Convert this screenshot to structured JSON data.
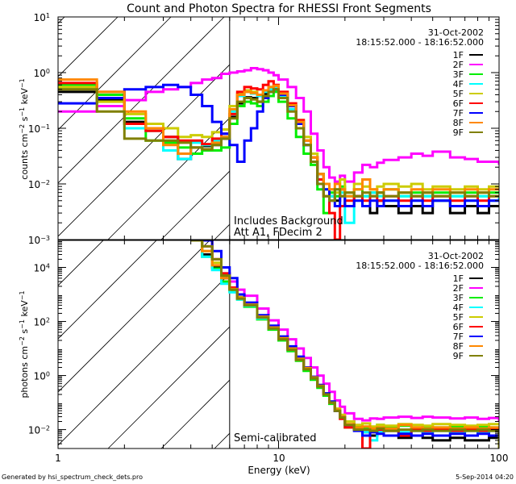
{
  "chart_data": [
    {
      "type": "line",
      "title": "Count and Photon Spectra for RHESSI Front Segments",
      "xlabel": "Energy (keV)",
      "ylabel": "counts cm^-2 s^-1 keV^-1",
      "xscale": "log",
      "yscale": "log",
      "xlim": [
        1,
        100
      ],
      "ylim": [
        0.001,
        10
      ],
      "x_tick_labels": [
        "1",
        "10",
        "100"
      ],
      "y_tick_labels": [
        {
          "base": "10",
          "exp": "1",
          "value": 10
        },
        {
          "base": "10",
          "exp": "0",
          "value": 1
        },
        {
          "base": "10",
          "exp": "-1",
          "value": 0.1
        },
        {
          "base": "10",
          "exp": "-2",
          "value": 0.01
        },
        {
          "base": "10",
          "exp": "-3",
          "value": 0.001
        }
      ],
      "threshold_energy_keV": 6,
      "date": "31-Oct-2002",
      "time_range": "18:15:52.000 - 18:16:52.000",
      "annotations": [
        "Includes Background",
        "Att A1, FDecim 2"
      ],
      "legend_position": "top-right",
      "energy": [
        1.0,
        1.5,
        2.0,
        2.5,
        3.0,
        3.5,
        4.0,
        4.5,
        5.0,
        5.5,
        6.0,
        6.5,
        7.0,
        7.5,
        8.0,
        8.5,
        9.0,
        9.5,
        10,
        11,
        12,
        13,
        14,
        15,
        16,
        17,
        18,
        19,
        20,
        22,
        24,
        26,
        28,
        30,
        35,
        40,
        45,
        50,
        60,
        70,
        80,
        90,
        100
      ],
      "series": [
        {
          "name": "1F",
          "color": "#000000",
          "values": [
            0.45,
            0.33,
            0.13,
            0.1,
            0.07,
            0.028,
            0.045,
            0.048,
            0.05,
            0.065,
            0.16,
            0.28,
            0.36,
            0.35,
            0.3,
            0.42,
            0.45,
            0.55,
            0.4,
            0.25,
            0.13,
            0.05,
            0.03,
            0.015,
            0.01,
            0.006,
            0.005,
            0.008,
            0.004,
            0.006,
            0.004,
            0.003,
            0.005,
            0.004,
            0.003,
            0.004,
            0.003,
            0.005,
            0.003,
            0.004,
            0.003,
            0.004,
            0.004
          ]
        },
        {
          "name": "2F",
          "color": "#ff00ff",
          "values": [
            0.2,
            0.25,
            0.32,
            0.45,
            0.5,
            0.55,
            0.65,
            0.75,
            0.8,
            0.95,
            1.0,
            1.05,
            1.1,
            1.2,
            1.15,
            1.1,
            1.0,
            0.9,
            0.75,
            0.55,
            0.35,
            0.2,
            0.08,
            0.04,
            0.02,
            0.013,
            0.011,
            0.014,
            0.011,
            0.016,
            0.022,
            0.02,
            0.024,
            0.027,
            0.03,
            0.035,
            0.032,
            0.038,
            0.03,
            0.028,
            0.025,
            0.025,
            0.022
          ]
        },
        {
          "name": "3F",
          "color": "#00ee00",
          "values": [
            0.6,
            0.4,
            0.15,
            0.06,
            0.055,
            0.045,
            0.035,
            0.04,
            0.04,
            0.045,
            0.12,
            0.25,
            0.3,
            0.28,
            0.25,
            0.3,
            0.38,
            0.45,
            0.3,
            0.15,
            0.07,
            0.035,
            0.022,
            0.008,
            0.003,
            0.007,
            0.006,
            0.009,
            0.006,
            0.008,
            0.006,
            0.007,
            0.007,
            0.008,
            0.006,
            0.007,
            0.006,
            0.007,
            0.006,
            0.007,
            0.006,
            0.007,
            0.007
          ]
        },
        {
          "name": "4F",
          "color": "#00ffff",
          "values": [
            0.55,
            0.35,
            0.1,
            0.09,
            0.04,
            0.028,
            0.055,
            0.05,
            0.06,
            0.07,
            0.2,
            0.38,
            0.45,
            0.42,
            0.38,
            0.45,
            0.5,
            0.55,
            0.38,
            0.22,
            0.12,
            0.05,
            0.025,
            0.012,
            0.008,
            0.006,
            0.008,
            0.007,
            0.002,
            0.005,
            0.006,
            0.007,
            0.006,
            0.005,
            0.006,
            0.005,
            0.006,
            0.005,
            0.006,
            0.005,
            0.006,
            0.005,
            0.006
          ]
        },
        {
          "name": "5F",
          "color": "#cccc00",
          "values": [
            0.55,
            0.3,
            0.18,
            0.12,
            0.1,
            0.07,
            0.075,
            0.07,
            0.085,
            0.095,
            0.25,
            0.42,
            0.48,
            0.45,
            0.4,
            0.48,
            0.55,
            0.58,
            0.42,
            0.26,
            0.14,
            0.07,
            0.035,
            0.015,
            0.01,
            0.008,
            0.007,
            0.012,
            0.007,
            0.01,
            0.009,
            0.008,
            0.009,
            0.01,
            0.009,
            0.01,
            0.008,
            0.009,
            0.008,
            0.009,
            0.008,
            0.009,
            0.009
          ]
        },
        {
          "name": "6F",
          "color": "#ff0000",
          "values": [
            0.65,
            0.45,
            0.12,
            0.09,
            0.07,
            0.06,
            0.06,
            0.052,
            0.065,
            0.08,
            0.18,
            0.45,
            0.55,
            0.52,
            0.5,
            0.6,
            0.7,
            0.6,
            0.45,
            0.28,
            0.14,
            0.06,
            0.03,
            0.012,
            0.006,
            0.003,
            0.001,
            0.004,
            0.005,
            0.006,
            0.005,
            0.006,
            0.005,
            0.006,
            0.005,
            0.006,
            0.005,
            0.006,
            0.005,
            0.006,
            0.005,
            0.006,
            0.006
          ]
        },
        {
          "name": "7F",
          "color": "#0000ff",
          "values": [
            0.28,
            0.35,
            0.5,
            0.55,
            0.6,
            0.55,
            0.4,
            0.25,
            0.13,
            0.08,
            0.05,
            0.025,
            0.06,
            0.1,
            0.2,
            0.35,
            0.45,
            0.5,
            0.4,
            0.25,
            0.12,
            0.05,
            0.025,
            0.01,
            0.008,
            0.005,
            0.004,
            0.006,
            0.004,
            0.005,
            0.004,
            0.005,
            0.004,
            0.005,
            0.004,
            0.005,
            0.004,
            0.005,
            0.004,
            0.005,
            0.004,
            0.005,
            0.005
          ]
        },
        {
          "name": "8F",
          "color": "#ff8800",
          "values": [
            0.75,
            0.45,
            0.2,
            0.1,
            0.05,
            0.035,
            0.045,
            0.042,
            0.055,
            0.07,
            0.22,
            0.4,
            0.45,
            0.43,
            0.4,
            0.48,
            0.55,
            0.58,
            0.42,
            0.26,
            0.13,
            0.06,
            0.03,
            0.015,
            0.01,
            0.008,
            0.01,
            0.008,
            0.006,
            0.008,
            0.012,
            0.008,
            0.007,
            0.008,
            0.007,
            0.008,
            0.007,
            0.008,
            0.007,
            0.008,
            0.007,
            0.008,
            0.008
          ]
        },
        {
          "name": "9F",
          "color": "#808000",
          "values": [
            0.5,
            0.2,
            0.065,
            0.06,
            0.06,
            0.055,
            0.045,
            0.042,
            0.05,
            0.065,
            0.15,
            0.3,
            0.35,
            0.33,
            0.3,
            0.38,
            0.45,
            0.5,
            0.35,
            0.2,
            0.1,
            0.05,
            0.025,
            0.01,
            0.006,
            0.005,
            0.008,
            0.006,
            0.007,
            0.006,
            0.007,
            0.006,
            0.007,
            0.006,
            0.007,
            0.006,
            0.007,
            0.006,
            0.007,
            0.006,
            0.007,
            0.006,
            0.006
          ]
        }
      ]
    },
    {
      "type": "line",
      "title": "",
      "xlabel": "Energy (keV)",
      "ylabel": "photons cm^-2 s^-1 keV^-1",
      "xscale": "log",
      "yscale": "log",
      "xlim": [
        1,
        100
      ],
      "ylim": [
        0.002,
        100000
      ],
      "x_tick_labels": [
        "1",
        "10",
        "100"
      ],
      "y_tick_labels": [
        {
          "base": "10",
          "exp": "4",
          "value": 10000
        },
        {
          "base": "10",
          "exp": "2",
          "value": 100
        },
        {
          "base": "10",
          "exp": "0",
          "value": 1
        },
        {
          "base": "10",
          "exp": "-2",
          "value": 0.01
        }
      ],
      "threshold_energy_keV": 6,
      "date": "31-Oct-2002",
      "time_range": "18:15:52.000 - 18:16:52.000",
      "annotations": [
        "Semi-calibrated"
      ],
      "legend_position": "top-right",
      "energy": [
        4.0,
        4.5,
        5.0,
        5.5,
        6.0,
        6.5,
        7.0,
        8.0,
        9.0,
        10,
        11,
        12,
        13,
        14,
        15,
        16,
        17,
        18,
        19,
        20,
        22,
        24,
        26,
        28,
        30,
        35,
        40,
        45,
        50,
        60,
        70,
        80,
        90,
        100
      ],
      "series": [
        {
          "name": "1F",
          "color": "#000000",
          "values": [
            100000,
            30000,
            10000,
            4000,
            1500,
            700,
            400,
            140,
            55,
            22,
            9,
            4,
            1.7,
            0.8,
            0.4,
            0.2,
            0.1,
            0.05,
            0.03,
            0.02,
            0.01,
            0.008,
            0.006,
            0.008,
            0.006,
            0.005,
            0.006,
            0.005,
            0.004,
            0.005,
            0.004,
            0.004,
            0.005,
            0.004
          ]
        },
        {
          "name": "2F",
          "color": "#ff00ff",
          "values": [
            100000,
            60000,
            20000,
            6000,
            3000,
            1500,
            900,
            300,
            110,
            50,
            22,
            10,
            4.5,
            2,
            1,
            0.5,
            0.25,
            0.12,
            0.07,
            0.04,
            0.025,
            0.022,
            0.026,
            0.025,
            0.028,
            0.03,
            0.027,
            0.03,
            0.028,
            0.026,
            0.028,
            0.025,
            0.027,
            0.02
          ]
        },
        {
          "name": "3F",
          "color": "#00ee00",
          "values": [
            100000,
            25000,
            9000,
            3000,
            1300,
            650,
            350,
            120,
            50,
            20,
            8,
            3.5,
            1.5,
            0.7,
            0.35,
            0.18,
            0.09,
            0.05,
            0.03,
            0.012,
            0.013,
            0.012,
            0.01,
            0.015,
            0.012,
            0.014,
            0.012,
            0.013,
            0.012,
            0.013,
            0.012,
            0.013,
            0.012,
            0.012
          ]
        },
        {
          "name": "4F",
          "color": "#00ffff",
          "values": [
            100000,
            25000,
            8000,
            2500,
            1200,
            650,
            380,
            130,
            55,
            22,
            9,
            4,
            1.8,
            0.8,
            0.4,
            0.2,
            0.1,
            0.05,
            0.03,
            0.015,
            0.01,
            0.008,
            0.004,
            0.008,
            0.009,
            0.008,
            0.009,
            0.008,
            0.009,
            0.008,
            0.009,
            0.008,
            0.009,
            0.009
          ]
        },
        {
          "name": "5F",
          "color": "#cccc00",
          "values": [
            100000,
            40000,
            15000,
            5000,
            1800,
            800,
            450,
            160,
            65,
            26,
            11,
            4.5,
            2,
            0.9,
            0.45,
            0.22,
            0.11,
            0.06,
            0.035,
            0.02,
            0.015,
            0.017,
            0.013,
            0.015,
            0.014,
            0.016,
            0.015,
            0.014,
            0.016,
            0.015,
            0.014,
            0.015,
            0.016,
            0.015
          ]
        },
        {
          "name": "6F",
          "color": "#ff0000",
          "values": [
            100000,
            100000,
            20000,
            6000,
            1800,
            750,
            420,
            150,
            60,
            24,
            10,
            4,
            1.8,
            0.8,
            0.4,
            0.2,
            0.1,
            0.05,
            0.025,
            0.012,
            0.01,
            0.001,
            0.008,
            0.01,
            0.009,
            0.006,
            0.01,
            0.009,
            0.01,
            0.009,
            0.01,
            0.009,
            0.01,
            0.01
          ]
        },
        {
          "name": "7F",
          "color": "#0000ff",
          "values": [
            100000,
            100000,
            40000,
            10000,
            4000,
            1000,
            500,
            170,
            70,
            28,
            12,
            5,
            2,
            0.9,
            0.45,
            0.22,
            0.11,
            0.05,
            0.03,
            0.015,
            0.009,
            0.006,
            0.008,
            0.007,
            0.006,
            0.007,
            0.006,
            0.007,
            0.006,
            0.007,
            0.006,
            0.007,
            0.006,
            0.006
          ]
        },
        {
          "name": "8F",
          "color": "#ff8800",
          "values": [
            100000,
            40000,
            12000,
            4000,
            1600,
            750,
            420,
            150,
            60,
            24,
            10,
            4.2,
            1.9,
            0.85,
            0.42,
            0.2,
            0.1,
            0.055,
            0.03,
            0.016,
            0.012,
            0.013,
            0.011,
            0.012,
            0.011,
            0.015,
            0.012,
            0.011,
            0.012,
            0.011,
            0.012,
            0.011,
            0.012,
            0.011
          ]
        },
        {
          "name": "9F",
          "color": "#808000",
          "values": [
            100000,
            60000,
            20000,
            5000,
            1500,
            700,
            400,
            140,
            55,
            22,
            9,
            3.8,
            1.7,
            0.8,
            0.4,
            0.2,
            0.1,
            0.05,
            0.028,
            0.015,
            0.01,
            0.01,
            0.009,
            0.011,
            0.009,
            0.01,
            0.009,
            0.01,
            0.009,
            0.01,
            0.009,
            0.01,
            0.009,
            0.001
          ]
        }
      ]
    }
  ],
  "footer": {
    "generated_by": "Generated by hsi_spectrum_check_dets.pro",
    "timestamp": "5-Sep-2014 04:20"
  }
}
